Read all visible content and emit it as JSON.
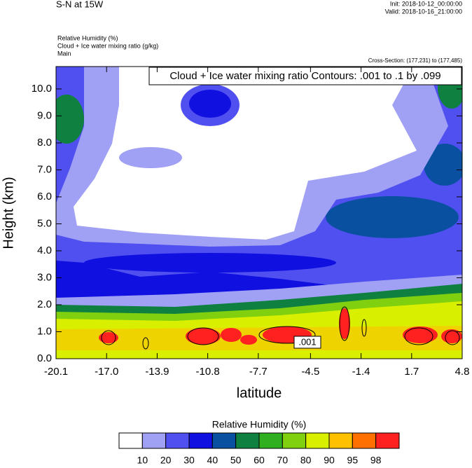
{
  "chart_data": {
    "type": "contour",
    "title": "S-N at 15W",
    "init": "Init: 2018-10-12_00:00:00",
    "valid": "Valid: 2018-10-16_21:00:00",
    "field_labels": [
      "Relative Humidity   (%)",
      "Cloud + Ice water mixing ratio   (g/kg)",
      "Main"
    ],
    "cross_section": "Cross-Section: (177,231) to (177,485)",
    "contour_info": "Cloud + Ice water mixing ratio Contours: .001 to .1 by .099",
    "contour_label": ".001",
    "ylabel": "Height (km)",
    "xlabel": "latitude",
    "xlim": [
      -20.1,
      4.8
    ],
    "ylim": [
      0,
      10.83
    ],
    "xticks": [
      -20.1,
      {
        "value": -17.0,
        "label": "-17.0"
      },
      -13.9,
      -10.8,
      -7.7,
      -4.5,
      -1.4,
      1.7,
      4.8
    ],
    "yticks": [
      {
        "value": 0,
        "label": "0.0"
      },
      {
        "value": 1,
        "label": "1.0"
      },
      {
        "value": 2,
        "label": "2.0"
      },
      {
        "value": 3,
        "label": "3.0"
      },
      {
        "value": 4,
        "label": "4.0"
      },
      {
        "value": 5,
        "label": "5.0"
      },
      {
        "value": 6,
        "label": "6.0"
      },
      {
        "value": 7,
        "label": "7.0"
      },
      {
        "value": 8,
        "label": "8.0"
      },
      {
        "value": 9,
        "label": "9.0"
      },
      {
        "value": 10,
        "label": "10.0"
      }
    ],
    "colorbar": {
      "title": "Relative Humidity  (%)",
      "levels": [
        10,
        20,
        30,
        40,
        50,
        60,
        70,
        80,
        90,
        95,
        98
      ],
      "colors": [
        "#ffffff",
        "#a0a0f5",
        "#5050f0",
        "#1010e0",
        "#0a50a0",
        "#108040",
        "#30b020",
        "#80d010",
        "#d8f000",
        "#ffc000",
        "#ff7000",
        "#ff2020"
      ]
    }
  }
}
